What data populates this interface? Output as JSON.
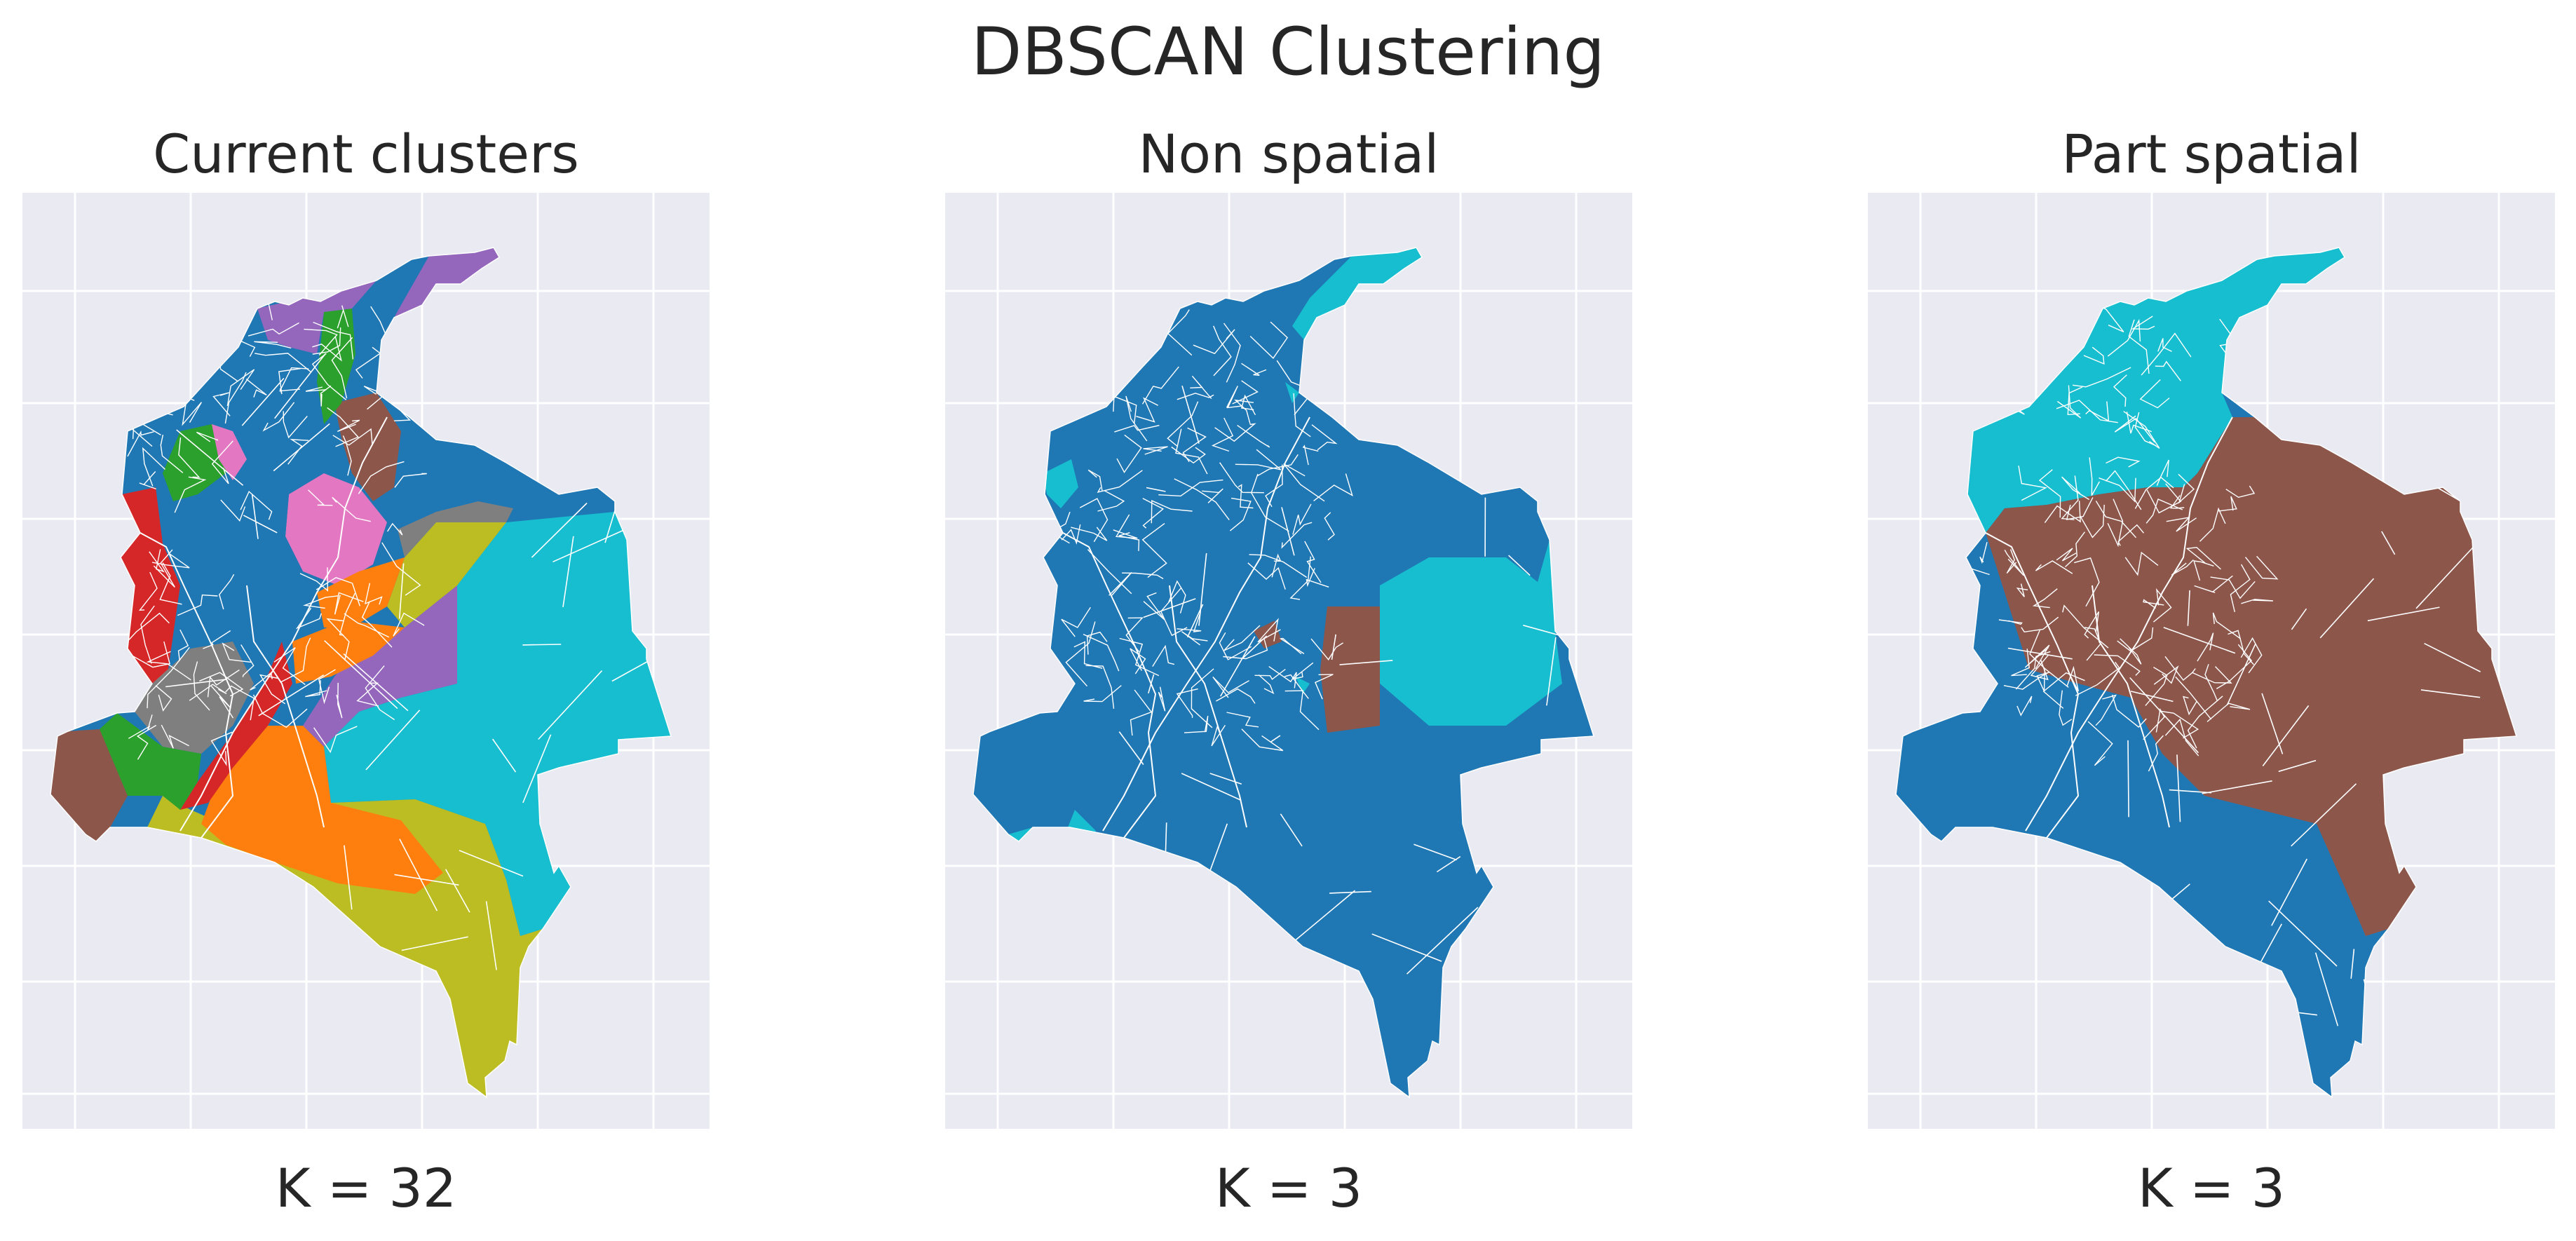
{
  "figure": {
    "title": "DBSCAN Clustering"
  },
  "panels": [
    {
      "title": "Current clusters",
      "footer": "K = 32",
      "coloring": "current",
      "cluster_count": 32
    },
    {
      "title": "Non spatial",
      "footer": "K = 3",
      "coloring": "nonspatial",
      "cluster_count": 3
    },
    {
      "title": "Part spatial",
      "footer": "K = 3",
      "coloring": "partspatial",
      "cluster_count": 3
    }
  ],
  "colors": {
    "axes_background": "#eaeaf2",
    "grid": "#ffffff",
    "boundary": "#ffffff",
    "blue": "#1f77b4",
    "orange": "#ff7f0e",
    "green": "#2ca02c",
    "red": "#d62728",
    "purple": "#9467bd",
    "brown": "#8c564b",
    "pink": "#e377c2",
    "gray": "#7f7f7f",
    "olive": "#bcbd22",
    "cyan": "#17becf"
  }
}
